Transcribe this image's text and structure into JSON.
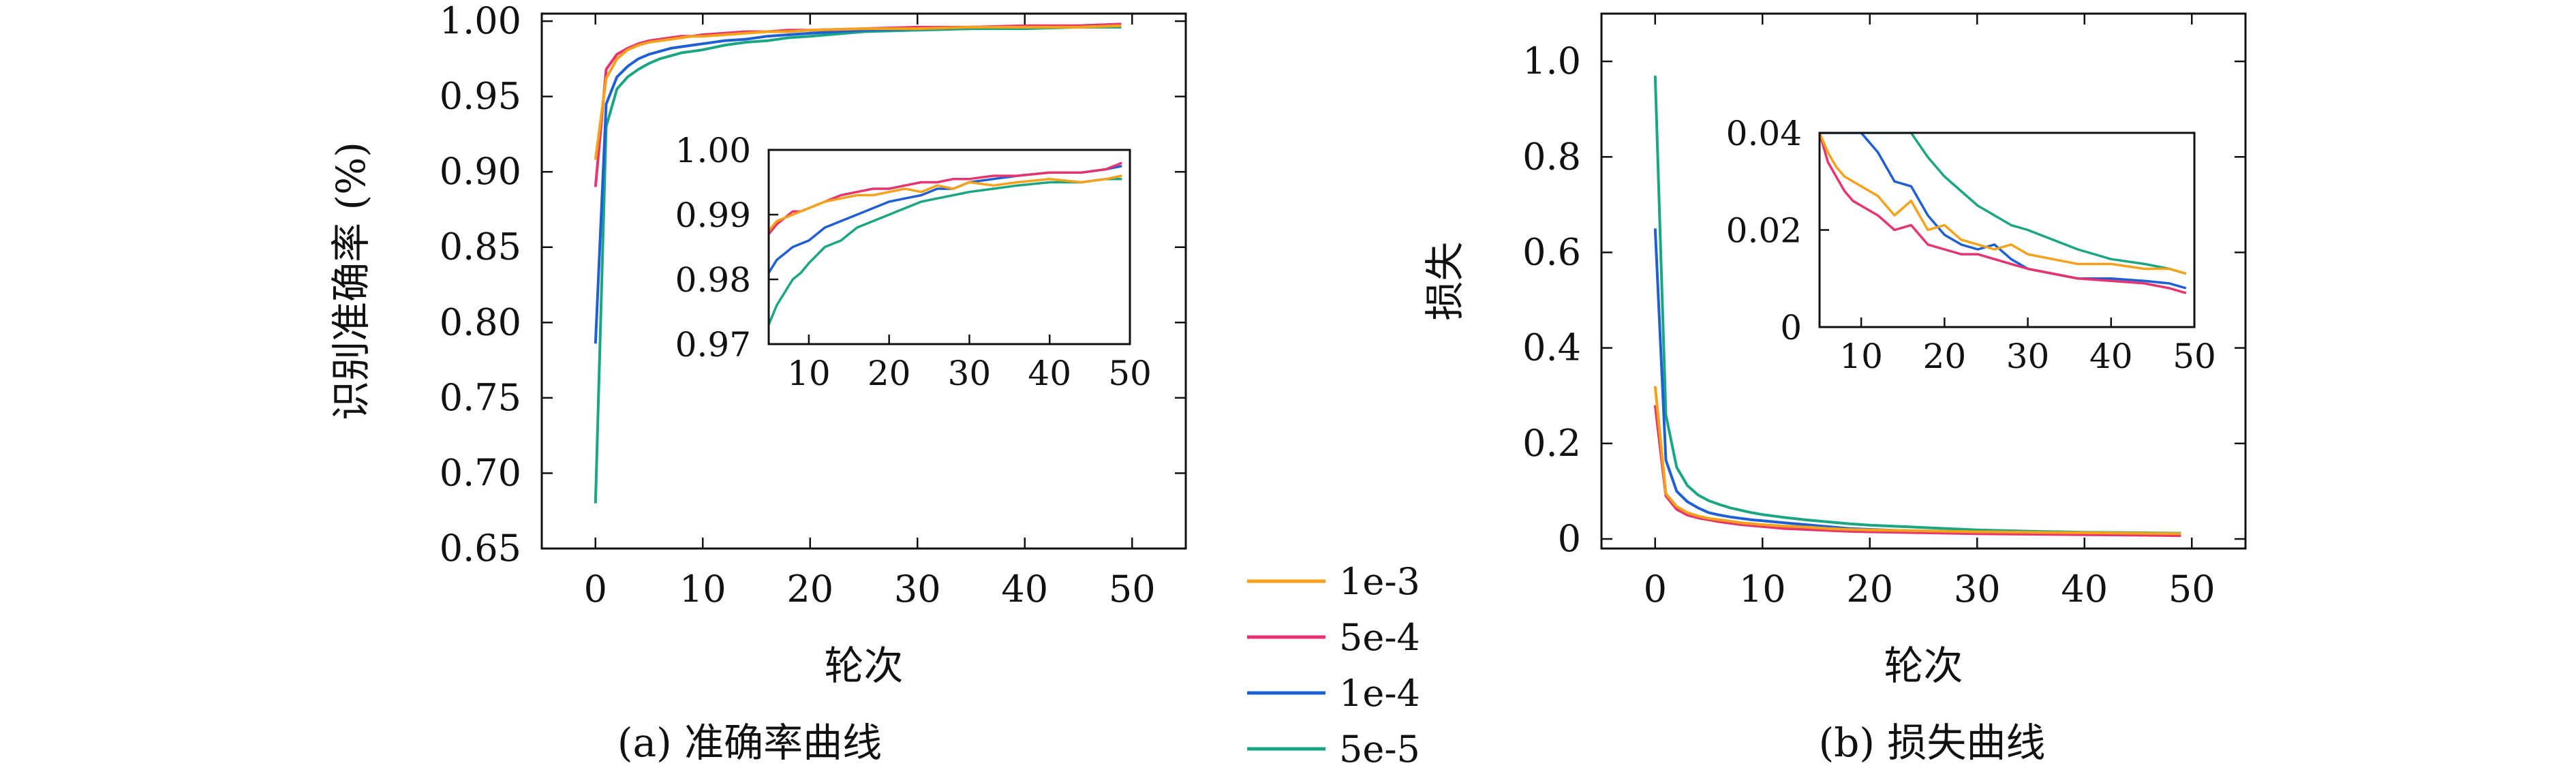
{
  "captions": {
    "a": "(a) 准确率曲线",
    "b": "(b) 损失曲线"
  },
  "legend": [
    {
      "label": "1e-3",
      "color": "#f5a21a"
    },
    {
      "label": "5e-4",
      "color": "#e8336e"
    },
    {
      "label": "1e-4",
      "color": "#1f5fd6"
    },
    {
      "label": "5e-5",
      "color": "#1aa683"
    }
  ],
  "chart_data": [
    {
      "id": "accuracy",
      "type": "line",
      "title": "(a) 准确率曲线",
      "xlabel": "轮次",
      "ylabel": "识别准确率 (%)",
      "xlim": [
        -5,
        55
      ],
      "ylim": [
        0.65,
        1.005
      ],
      "xticks": [
        0,
        10,
        20,
        30,
        40,
        50
      ],
      "yticks": [
        0.65,
        0.7,
        0.75,
        0.8,
        0.85,
        0.9,
        0.95,
        1.0
      ],
      "ytick_labels": [
        "0.65",
        "0.70",
        "0.75",
        "0.80",
        "0.85",
        "0.90",
        "0.95",
        "1.00"
      ],
      "x": [
        0,
        1,
        2,
        3,
        4,
        5,
        6,
        7,
        8,
        9,
        10,
        12,
        14,
        16,
        18,
        20,
        25,
        30,
        35,
        40,
        45,
        49
      ],
      "series": [
        {
          "name": "1e-3",
          "values": [
            0.908,
            0.962,
            0.975,
            0.981,
            0.984,
            0.986,
            0.987,
            0.988,
            0.989,
            0.99,
            0.99,
            0.991,
            0.992,
            0.993,
            0.993,
            0.994,
            0.995,
            0.995,
            0.996,
            0.996,
            0.996,
            0.997
          ]
        },
        {
          "name": "5e-4",
          "values": [
            0.89,
            0.968,
            0.978,
            0.982,
            0.985,
            0.987,
            0.988,
            0.989,
            0.99,
            0.99,
            0.991,
            0.992,
            0.993,
            0.993,
            0.994,
            0.994,
            0.995,
            0.996,
            0.996,
            0.997,
            0.997,
            0.998
          ]
        },
        {
          "name": "1e-4",
          "values": [
            0.786,
            0.945,
            0.963,
            0.97,
            0.975,
            0.978,
            0.98,
            0.982,
            0.983,
            0.984,
            0.985,
            0.987,
            0.988,
            0.99,
            0.991,
            0.992,
            0.994,
            0.995,
            0.996,
            0.996,
            0.997,
            0.998
          ]
        },
        {
          "name": "5e-5",
          "values": [
            0.68,
            0.93,
            0.955,
            0.963,
            0.968,
            0.972,
            0.975,
            0.977,
            0.979,
            0.98,
            0.981,
            0.984,
            0.986,
            0.987,
            0.989,
            0.99,
            0.993,
            0.994,
            0.995,
            0.995,
            0.996,
            0.996
          ]
        }
      ],
      "inset": {
        "xlim": [
          5,
          50
        ],
        "ylim": [
          0.97,
          1.0
        ],
        "xticks": [
          10,
          20,
          30,
          40,
          50
        ],
        "yticks": [
          0.97,
          0.98,
          0.99,
          1.0
        ],
        "ytick_labels": [
          "0.97",
          "0.98",
          "0.99",
          "1.00"
        ],
        "x": [
          5,
          6,
          7,
          8,
          9,
          10,
          12,
          14,
          16,
          18,
          20,
          22,
          24,
          26,
          28,
          30,
          33,
          36,
          40,
          44,
          47,
          49
        ],
        "series": [
          {
            "name": "1e-3",
            "values": [
              0.9875,
              0.989,
              0.9895,
              0.99,
              0.9905,
              0.991,
              0.992,
              0.9925,
              0.993,
              0.993,
              0.9935,
              0.994,
              0.9935,
              0.9945,
              0.994,
              0.995,
              0.9945,
              0.995,
              0.9955,
              0.995,
              0.9955,
              0.996
            ]
          },
          {
            "name": "5e-4",
            "values": [
              0.987,
              0.9885,
              0.9895,
              0.9905,
              0.9905,
              0.991,
              0.992,
              0.993,
              0.9935,
              0.994,
              0.994,
              0.9945,
              0.995,
              0.995,
              0.9955,
              0.9955,
              0.996,
              0.996,
              0.9965,
              0.9965,
              0.997,
              0.998
            ]
          },
          {
            "name": "1e-4",
            "values": [
              0.981,
              0.983,
              0.984,
              0.985,
              0.9855,
              0.986,
              0.988,
              0.989,
              0.99,
              0.991,
              0.992,
              0.9925,
              0.993,
              0.994,
              0.994,
              0.995,
              0.9955,
              0.996,
              0.9965,
              0.9965,
              0.997,
              0.9975
            ]
          },
          {
            "name": "5e-5",
            "values": [
              0.973,
              0.976,
              0.978,
              0.98,
              0.981,
              0.9825,
              0.985,
              0.986,
              0.988,
              0.989,
              0.99,
              0.991,
              0.992,
              0.9925,
              0.993,
              0.9935,
              0.994,
              0.9945,
              0.995,
              0.995,
              0.9955,
              0.9955
            ]
          }
        ]
      }
    },
    {
      "id": "loss",
      "type": "line",
      "title": "(b) 损失曲线",
      "xlabel": "轮次",
      "ylabel": "损失",
      "xlim": [
        -5,
        55
      ],
      "ylim": [
        -0.02,
        1.1
      ],
      "xticks": [
        0,
        10,
        20,
        30,
        40,
        50
      ],
      "yticks": [
        0,
        0.2,
        0.4,
        0.6,
        0.8,
        1.0
      ],
      "ytick_labels": [
        "0",
        "0.2",
        "0.4",
        "0.6",
        "0.8",
        "1.0"
      ],
      "x": [
        0,
        1,
        2,
        3,
        4,
        5,
        6,
        7,
        8,
        9,
        10,
        12,
        14,
        16,
        18,
        20,
        25,
        30,
        35,
        40,
        45,
        49
      ],
      "series": [
        {
          "name": "1e-3",
          "values": [
            0.32,
            0.095,
            0.068,
            0.055,
            0.048,
            0.043,
            0.04,
            0.037,
            0.034,
            0.032,
            0.03,
            0.027,
            0.025,
            0.022,
            0.02,
            0.019,
            0.017,
            0.015,
            0.014,
            0.013,
            0.012,
            0.011
          ]
        },
        {
          "name": "5e-4",
          "values": [
            0.28,
            0.09,
            0.062,
            0.05,
            0.044,
            0.04,
            0.036,
            0.033,
            0.03,
            0.028,
            0.026,
            0.022,
            0.02,
            0.018,
            0.016,
            0.015,
            0.013,
            0.011,
            0.01,
            0.009,
            0.008,
            0.007
          ]
        },
        {
          "name": "1e-4",
          "values": [
            0.65,
            0.165,
            0.1,
            0.078,
            0.065,
            0.055,
            0.05,
            0.046,
            0.043,
            0.04,
            0.038,
            0.034,
            0.03,
            0.026,
            0.022,
            0.02,
            0.016,
            0.013,
            0.011,
            0.01,
            0.009,
            0.008
          ]
        },
        {
          "name": "5e-5",
          "values": [
            0.97,
            0.26,
            0.15,
            0.112,
            0.092,
            0.08,
            0.072,
            0.065,
            0.06,
            0.055,
            0.051,
            0.045,
            0.04,
            0.036,
            0.032,
            0.029,
            0.024,
            0.019,
            0.016,
            0.014,
            0.013,
            0.012
          ]
        }
      ],
      "inset": {
        "xlim": [
          5,
          50
        ],
        "ylim": [
          0,
          0.04
        ],
        "xticks": [
          10,
          20,
          30,
          40,
          50
        ],
        "yticks": [
          0,
          0.02,
          0.04
        ],
        "ytick_labels": [
          "0",
          "0.02",
          "0.04"
        ],
        "x": [
          5,
          6,
          7,
          8,
          9,
          10,
          12,
          14,
          16,
          18,
          20,
          22,
          24,
          26,
          28,
          30,
          33,
          36,
          40,
          44,
          47,
          49
        ],
        "series": [
          {
            "name": "1e-3",
            "values": [
              0.04,
              0.036,
              0.033,
              0.031,
              0.03,
              0.029,
              0.027,
              0.023,
              0.026,
              0.02,
              0.021,
              0.018,
              0.017,
              0.016,
              0.017,
              0.015,
              0.014,
              0.013,
              0.013,
              0.012,
              0.012,
              0.011
            ]
          },
          {
            "name": "5e-4",
            "values": [
              0.04,
              0.034,
              0.031,
              0.028,
              0.026,
              0.025,
              0.023,
              0.02,
              0.021,
              0.017,
              0.016,
              0.015,
              0.015,
              0.014,
              0.013,
              0.012,
              0.011,
              0.01,
              0.0095,
              0.009,
              0.008,
              0.007
            ]
          },
          {
            "name": "1e-4",
            "values": [
              0.04,
              0.04,
              0.04,
              0.04,
              0.04,
              0.04,
              0.036,
              0.03,
              0.029,
              0.023,
              0.019,
              0.017,
              0.016,
              0.017,
              0.014,
              0.012,
              0.011,
              0.01,
              0.01,
              0.0095,
              0.009,
              0.008
            ]
          },
          {
            "name": "5e-5",
            "values": [
              0.04,
              0.04,
              0.04,
              0.04,
              0.04,
              0.04,
              0.04,
              0.04,
              0.04,
              0.035,
              0.031,
              0.028,
              0.025,
              0.023,
              0.021,
              0.02,
              0.018,
              0.016,
              0.014,
              0.013,
              0.012,
              0.011
            ]
          }
        ]
      }
    }
  ]
}
